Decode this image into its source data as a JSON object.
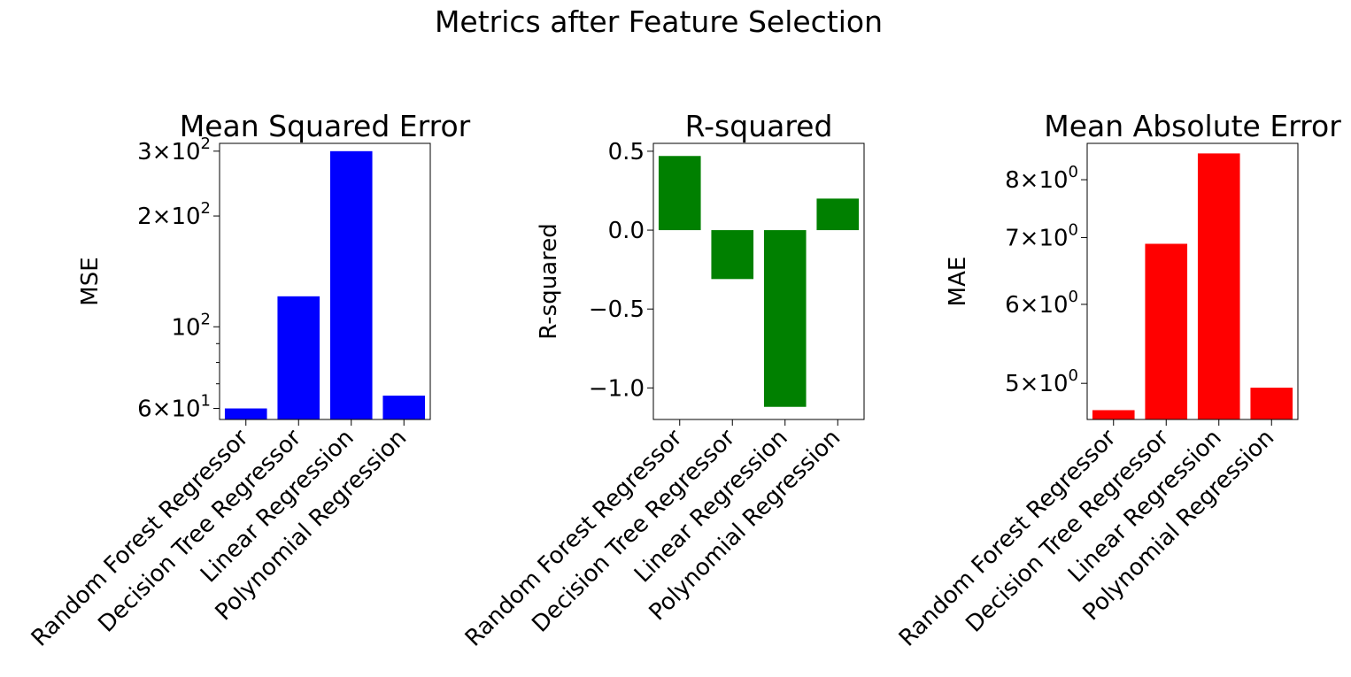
{
  "suptitle": "Metrics after Feature Selection",
  "chart_data": [
    {
      "type": "bar",
      "title": "Mean Squared Error",
      "xlabel": "",
      "ylabel": "MSE",
      "yscale": "log",
      "ylim": [
        56,
        315
      ],
      "categories": [
        "Random Forest Regressor",
        "Decision Tree Regressor",
        "Linear Regression",
        "Polynomial Regression"
      ],
      "values": [
        60,
        121,
        300,
        65
      ],
      "color": "#0000ff",
      "ytick_labels": [
        {
          "value": 60,
          "mantissa": "6",
          "exponent": "1"
        },
        {
          "value": 100,
          "mantissa": "",
          "exponent": "2"
        },
        {
          "value": 200,
          "mantissa": "2",
          "exponent": "2"
        },
        {
          "value": 300,
          "mantissa": "3",
          "exponent": "2"
        }
      ],
      "minor_ticks": [
        70,
        80,
        90
      ]
    },
    {
      "type": "bar",
      "title": "R-squared",
      "xlabel": "",
      "ylabel": "R-squared",
      "yscale": "linear",
      "ylim": [
        -1.2,
        0.55
      ],
      "categories": [
        "Random Forest Regressor",
        "Decision Tree Regressor",
        "Linear Regression",
        "Polynomial Regression"
      ],
      "values": [
        0.47,
        -0.31,
        -1.12,
        0.2
      ],
      "color": "#008000",
      "ytick_labels": [
        {
          "value": -1.0,
          "label": "−1.0"
        },
        {
          "value": -0.5,
          "label": "−0.5"
        },
        {
          "value": 0.0,
          "label": "0.0"
        },
        {
          "value": 0.5,
          "label": "0.5"
        }
      ]
    },
    {
      "type": "bar",
      "title": "Mean Absolute Error",
      "xlabel": "",
      "ylabel": "MAE",
      "yscale": "log",
      "ylim": [
        4.6,
        8.7
      ],
      "categories": [
        "Random Forest Regressor",
        "Decision Tree Regressor",
        "Linear Regression",
        "Polynomial Regression"
      ],
      "values": [
        4.7,
        6.9,
        8.5,
        4.95
      ],
      "color": "#ff0000",
      "ytick_labels": [
        {
          "value": 5,
          "mantissa": "5",
          "exponent": "0"
        },
        {
          "value": 6,
          "mantissa": "6",
          "exponent": "0"
        },
        {
          "value": 7,
          "mantissa": "7",
          "exponent": "0"
        },
        {
          "value": 8,
          "mantissa": "8",
          "exponent": "0"
        }
      ]
    }
  ]
}
